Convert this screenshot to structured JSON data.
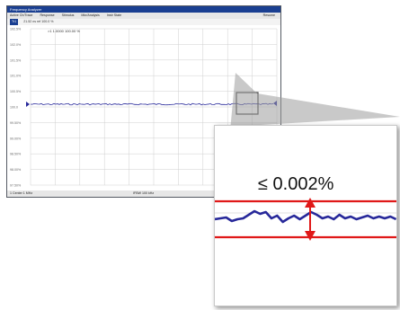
{
  "window": {
    "title": "Frequency Analyzer",
    "menu": [
      "Active Ch/Trace",
      "Response",
      "Stimulus",
      "Mkr/Analysis",
      "Instr State"
    ],
    "menu_right": "Resume",
    "trace_badge": "Tr1",
    "trace_info": "21.52 ns ref 100.0 %",
    "marker_readout": ">1 1.0000  100.00 %",
    "ref_marker_label": "100.0",
    "y_ticks": [
      "102.5%",
      "102.0%",
      "101.5%",
      "101.0%",
      "100.5%",
      "100.0",
      "99.50%",
      "99.00%",
      "98.50%",
      "98.00%",
      "97.50%"
    ],
    "bottom_left": "1  Center  1 MHz",
    "bottom_mid": "IFBW 100 kHz"
  },
  "zoom": {
    "tolerance_label": "≤ 0.002%"
  },
  "colors": {
    "title_bar": "#1a3f91",
    "trace": "#27289a",
    "limit_lines": "#e01818",
    "arrow": "#e01818"
  }
}
